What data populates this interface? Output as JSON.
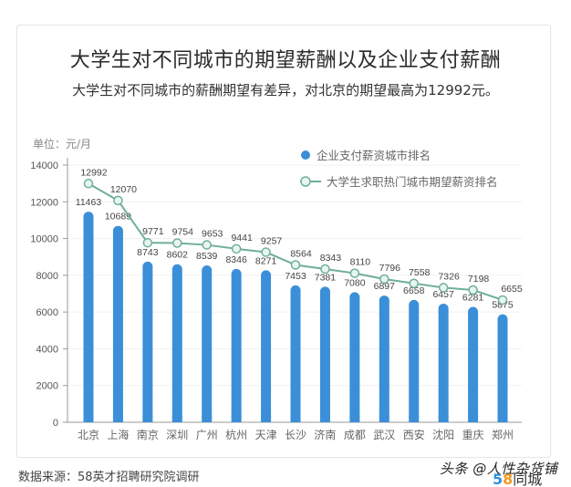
{
  "header": {
    "title": "大学生对不同城市的期望薪酬以及企业支付薪酬",
    "subtitle": "大学生对不同城市的薪酬期望有差异，对北京的期望最高为12992元。"
  },
  "unit_label": "单位：元/月",
  "legend": {
    "bar_label": "企业支付薪资城市排名",
    "line_label": "大学生求职热门城市期望薪资排名"
  },
  "footer": {
    "source": "数据来源：58英才招聘研究院调研",
    "watermark": "头条 @人性杂货铺",
    "logo_num_a": "5",
    "logo_num_b": "8",
    "logo_text": "同城"
  },
  "colors": {
    "bar": "#3b8fd9",
    "line": "#6fae9c",
    "marker_fill": "#e8f6f0",
    "grid": "#f0f0f0",
    "axis": "#999999"
  },
  "chart_data": {
    "type": "bar+line",
    "title": "大学生对不同城市的期望薪酬以及企业支付薪酬",
    "subtitle": "大学生对不同城市的薪酬期望有差异，对北京的期望最高为12992元。",
    "xlabel": "",
    "ylabel": "单位：元/月",
    "ylim": [
      0,
      14000
    ],
    "yticks": [
      0,
      2000,
      4000,
      6000,
      8000,
      10000,
      12000,
      14000
    ],
    "grid": true,
    "legend_position": "top-right",
    "categories": [
      "北京",
      "上海",
      "南京",
      "深圳",
      "广州",
      "杭州",
      "天津",
      "长沙",
      "济南",
      "成都",
      "武汉",
      "西安",
      "沈阳",
      "重庆",
      "郑州"
    ],
    "series": [
      {
        "name": "企业支付薪资城市排名",
        "type": "bar",
        "values": [
          11463,
          10689,
          8743,
          8602,
          8539,
          8346,
          8271,
          7453,
          7381,
          7080,
          6897,
          6658,
          6457,
          6281,
          5875
        ]
      },
      {
        "name": "大学生求职热门城市期望薪资排名",
        "type": "line",
        "values": [
          12992,
          12070,
          9771,
          9754,
          9653,
          9441,
          9257,
          8564,
          8343,
          8110,
          7796,
          7558,
          7326,
          7198,
          6655
        ]
      }
    ]
  }
}
